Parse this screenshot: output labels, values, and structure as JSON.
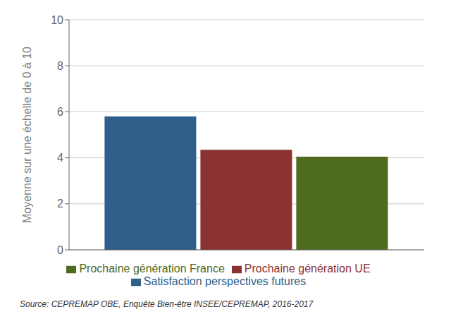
{
  "chart_data": {
    "type": "bar",
    "ylabel": "Moyenne sur une échelle de 0 à 10",
    "annotation": "Source: CEPREMAP OBE, Enquête Bien-être INSEE/CEPREMAP, 2016-2017",
    "categories": [
      null
    ],
    "series": [
      {
        "name": "Satisfaction perspectives futures",
        "color": "#2e5f8a",
        "values": [
          5.8
        ]
      },
      {
        "name": "Prochaine génération UE",
        "color": "#8b3333",
        "values": [
          4.35
        ]
      },
      {
        "name": "Prochaine génération France",
        "color": "#4f6b20",
        "values": [
          4.05
        ]
      }
    ],
    "ylim": [
      0,
      10
    ],
    "yticks": [
      0,
      2,
      4,
      6,
      8,
      10
    ],
    "grid": true,
    "legend": "bottom",
    "tick_labels": "y"
  }
}
